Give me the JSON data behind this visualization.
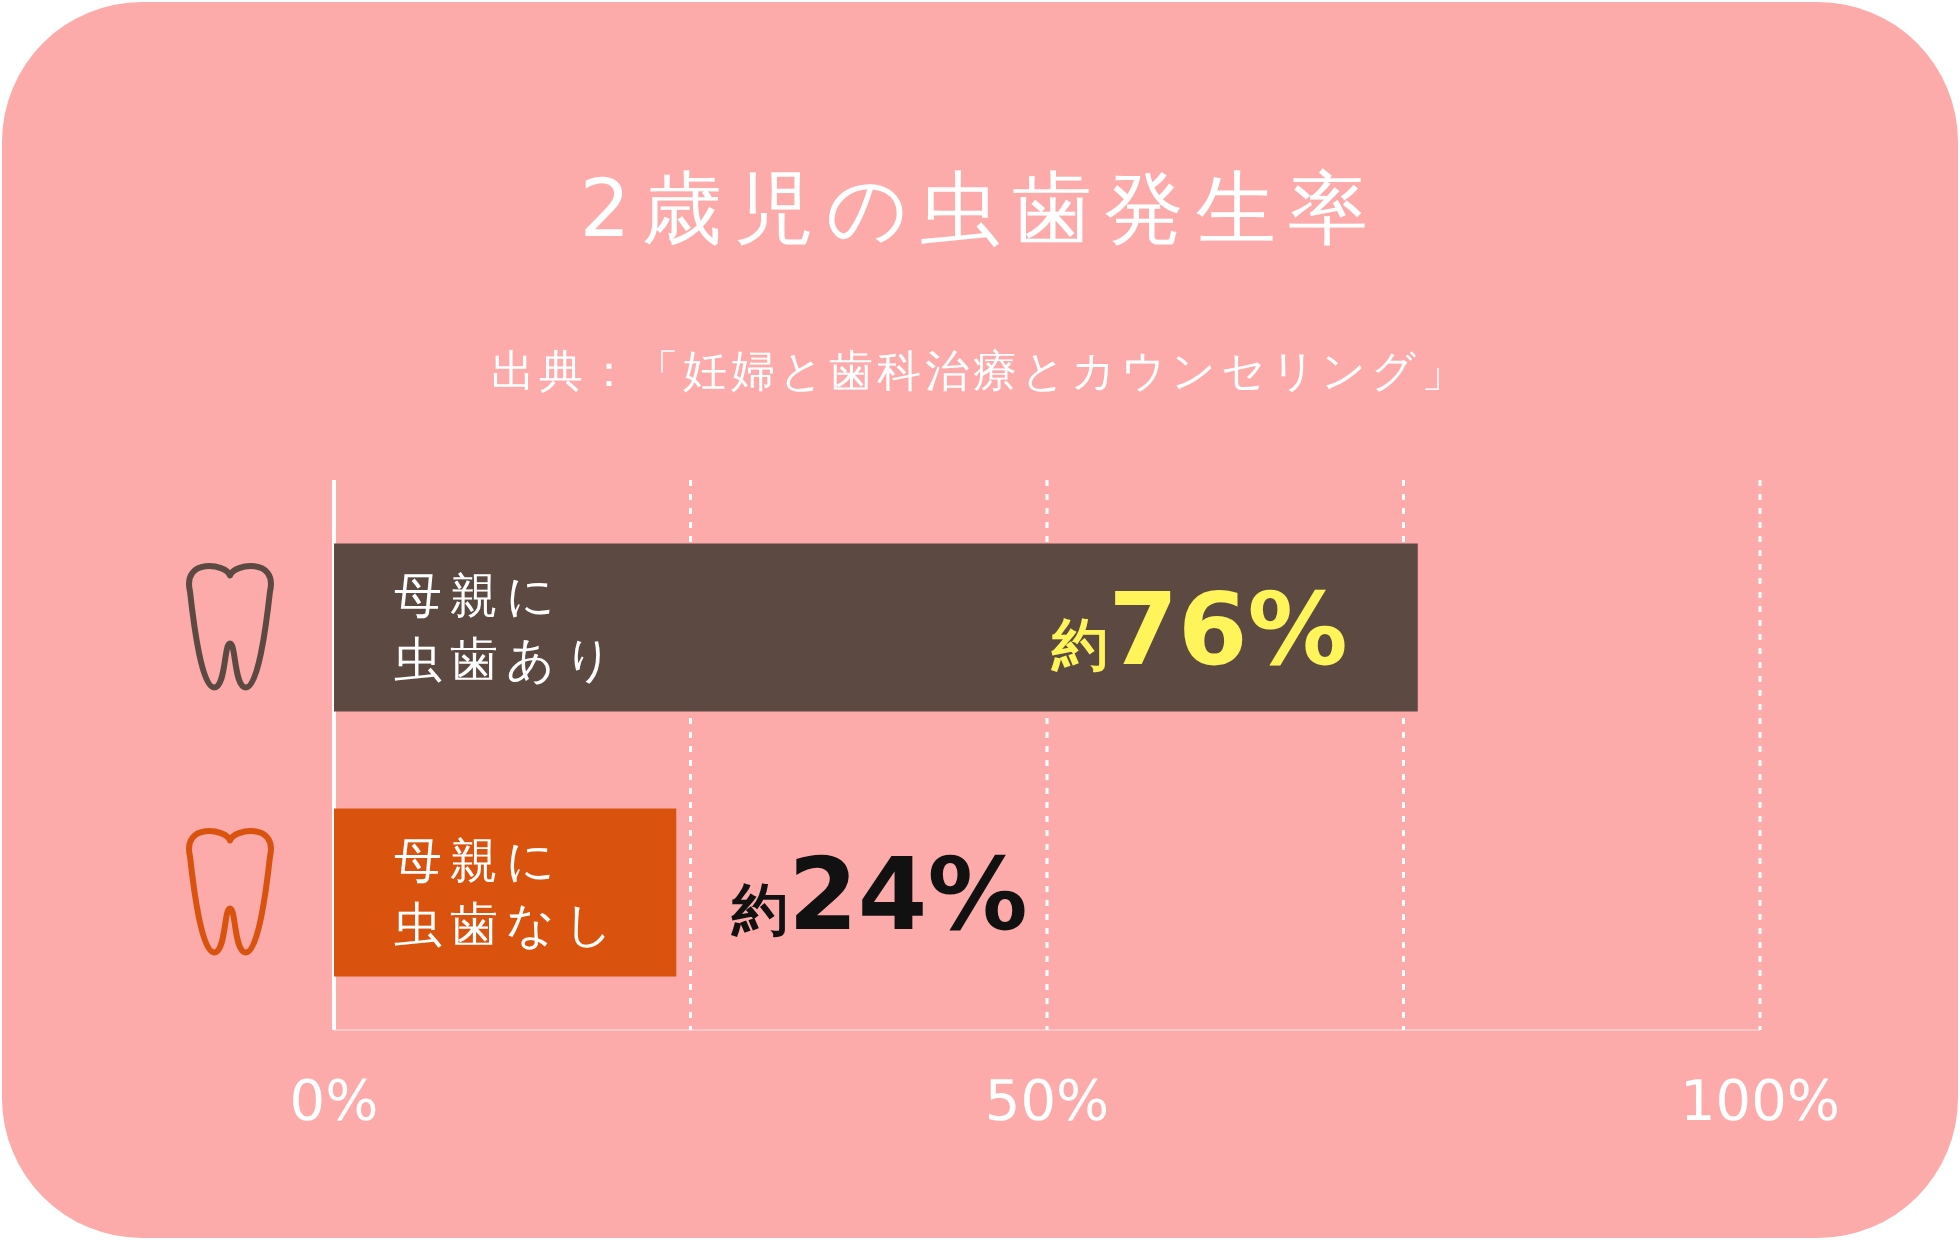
{
  "chart_data": {
    "type": "bar",
    "orientation": "horizontal",
    "title": "2歳児の虫歯発生率",
    "subtitle": "出典：「妊婦と歯科治療とカウンセリング」",
    "categories": [
      "母親に虫歯あり",
      "母親に虫歯なし"
    ],
    "values": [
      76,
      24
    ],
    "colors": [
      "#5c4a42",
      "#d9530f"
    ],
    "value_labels": [
      "約76%",
      "約24%"
    ],
    "xlim": [
      0,
      100
    ],
    "xticks": [
      {
        "value": 0,
        "label": "0%"
      },
      {
        "value": 25,
        "label": null
      },
      {
        "value": 50,
        "label": "50%"
      },
      {
        "value": 75,
        "label": null
      },
      {
        "value": 100,
        "label": "100%"
      }
    ],
    "grid": "x"
  }
}
